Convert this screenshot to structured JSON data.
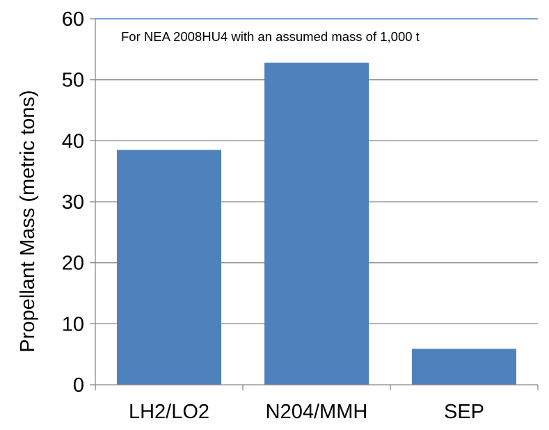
{
  "chart_data": {
    "type": "bar",
    "categories": [
      "LH2/LO2",
      "N204/MMH",
      "SEP"
    ],
    "values": [
      38.5,
      52.8,
      5.9
    ],
    "xlabel": "",
    "ylabel": "Propellant Mass (metric tons)",
    "ylim": [
      0,
      60
    ],
    "yticks": [
      0,
      10,
      20,
      30,
      40,
      50,
      60
    ],
    "grid": true,
    "legend": "none",
    "annotation": "For NEA 2008HU4 with an assumed mass of 1,000 t",
    "colors": {
      "bar": "#4f81bd",
      "grid": "#878787",
      "plot_border": "#4f81bd"
    }
  }
}
